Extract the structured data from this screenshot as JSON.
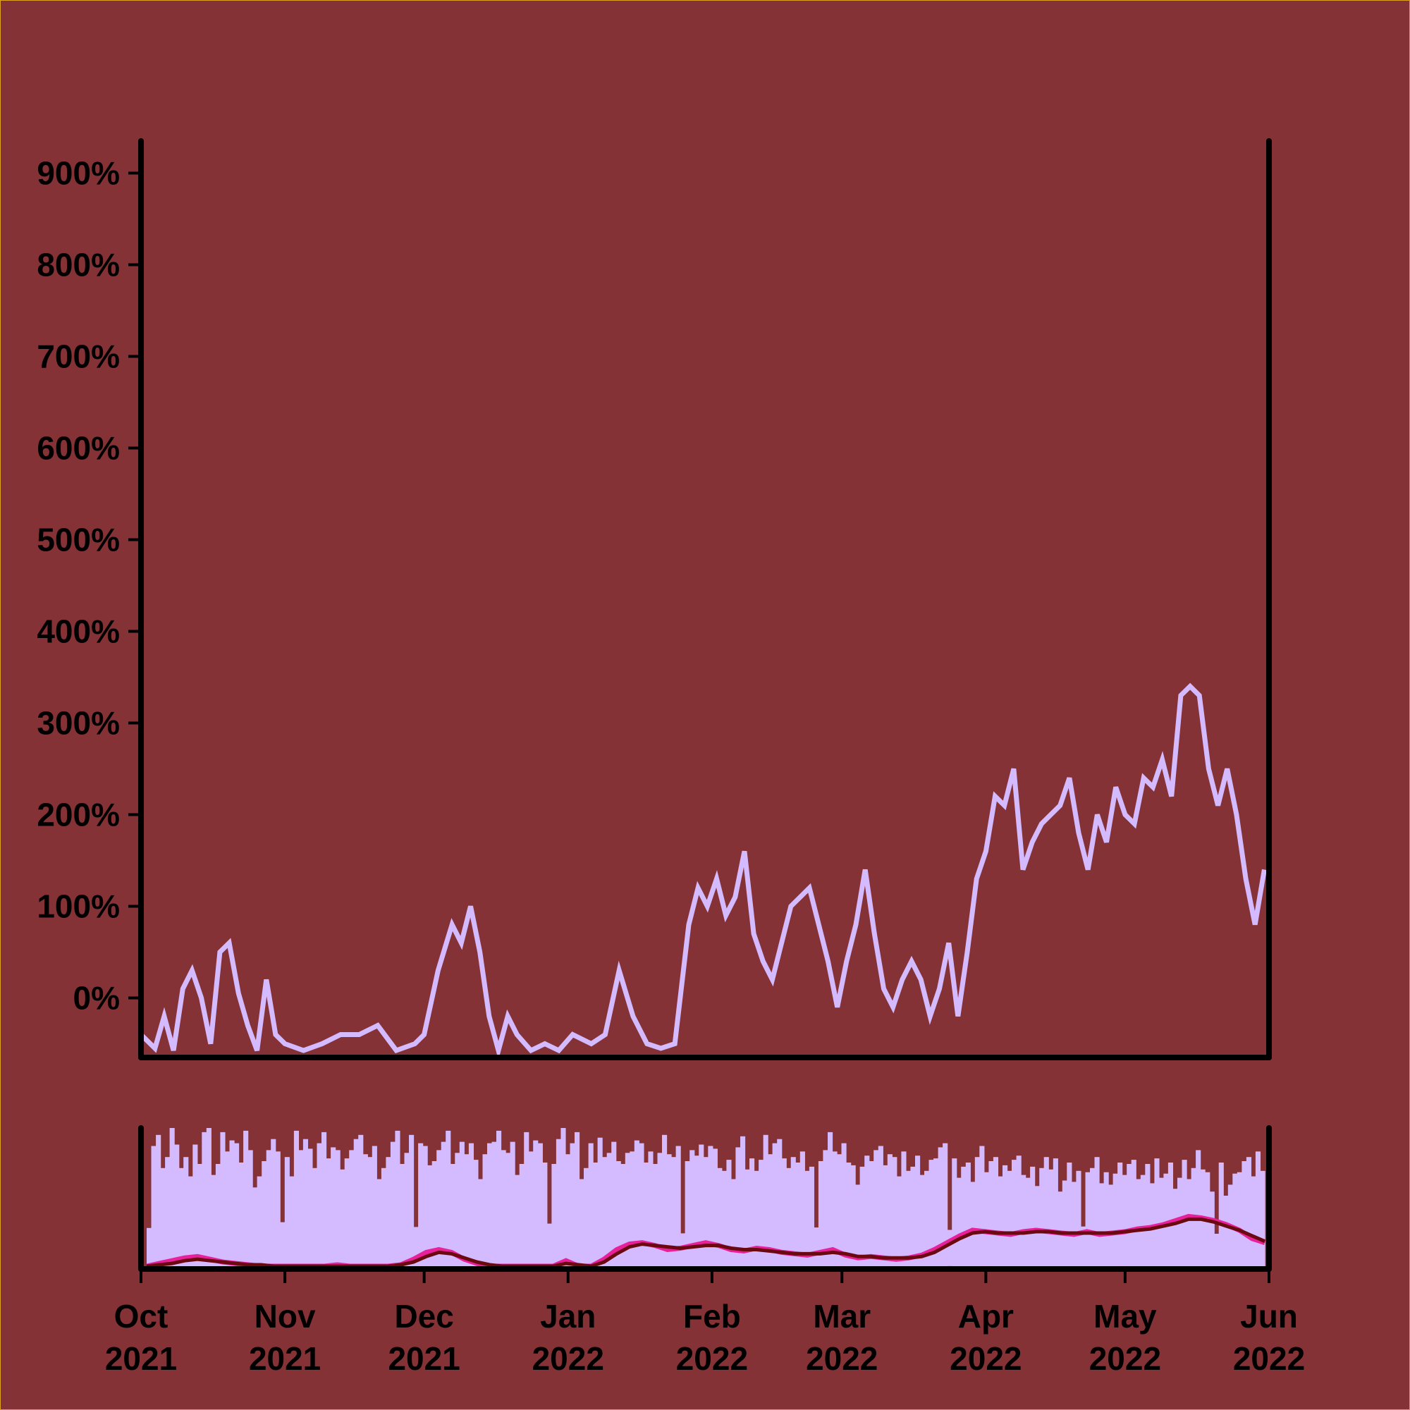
{
  "colors": {
    "background": "#843235",
    "border": "#e0a020",
    "axis": "#000000",
    "price_line": "#d4baff",
    "volume_bars": "#d4baff",
    "fast_ma": "#e8209a",
    "slow_ma": "#6a0a10"
  },
  "chart_data": [
    {
      "type": "line",
      "title": "",
      "xlabel": "",
      "ylabel": "",
      "x_range": [
        "2021-10-01",
        "2022-06-01"
      ],
      "ylim": [
        -65,
        935
      ],
      "grid": false,
      "y_ticks": [
        0,
        100,
        200,
        300,
        400,
        500,
        600,
        700,
        800,
        900
      ],
      "y_tick_labels": [
        "0%",
        "100%",
        "200%",
        "300%",
        "400%",
        "500%",
        "600%",
        "700%",
        "800%",
        "900%"
      ],
      "series": [
        {
          "x": [
            "2021-10-01",
            "2021-10-04",
            "2021-10-06",
            "2021-10-08",
            "2021-10-10",
            "2021-10-12",
            "2021-10-14",
            "2021-10-16",
            "2021-10-18",
            "2021-10-20",
            "2021-10-22",
            "2021-10-24",
            "2021-10-26",
            "2021-10-28",
            "2021-10-30",
            "2021-11-01",
            "2021-11-05",
            "2021-11-09",
            "2021-11-13",
            "2021-11-17",
            "2021-11-21",
            "2021-11-25",
            "2021-11-29",
            "2021-12-01",
            "2021-12-04",
            "2021-12-07",
            "2021-12-09",
            "2021-12-11",
            "2021-12-13",
            "2021-12-15",
            "2021-12-17",
            "2021-12-19",
            "2021-12-21",
            "2021-12-24",
            "2021-12-27",
            "2021-12-30",
            "2022-01-02",
            "2022-01-06",
            "2022-01-09",
            "2022-01-12",
            "2022-01-15",
            "2022-01-18",
            "2022-01-21",
            "2022-01-24",
            "2022-01-27",
            "2022-01-29",
            "2022-01-31",
            "2022-02-02",
            "2022-02-04",
            "2022-02-06",
            "2022-02-08",
            "2022-02-10",
            "2022-02-12",
            "2022-02-14",
            "2022-02-16",
            "2022-02-18",
            "2022-02-20",
            "2022-02-22",
            "2022-02-24",
            "2022-02-26",
            "2022-02-28",
            "2022-03-02",
            "2022-03-04",
            "2022-03-06",
            "2022-03-08",
            "2022-03-10",
            "2022-03-12",
            "2022-03-14",
            "2022-03-16",
            "2022-03-18",
            "2022-03-20",
            "2022-03-22",
            "2022-03-24",
            "2022-03-26",
            "2022-03-28",
            "2022-03-30",
            "2022-04-01",
            "2022-04-03",
            "2022-04-05",
            "2022-04-07",
            "2022-04-09",
            "2022-04-11",
            "2022-04-13",
            "2022-04-15",
            "2022-04-17",
            "2022-04-19",
            "2022-04-21",
            "2022-04-23",
            "2022-04-25",
            "2022-04-27",
            "2022-04-29",
            "2022-05-01",
            "2022-05-03",
            "2022-05-05",
            "2022-05-07",
            "2022-05-09",
            "2022-05-11",
            "2022-05-13",
            "2022-05-15",
            "2022-05-17",
            "2022-05-19",
            "2022-05-21",
            "2022-05-23",
            "2022-05-25",
            "2022-05-27",
            "2022-05-29",
            "2022-05-31"
          ],
          "y": [
            -40,
            -55,
            -20,
            -60,
            10,
            30,
            0,
            -50,
            50,
            60,
            5,
            -30,
            -60,
            20,
            -40,
            -50,
            -60,
            -50,
            -40,
            -40,
            -30,
            -60,
            -50,
            -40,
            30,
            80,
            60,
            100,
            50,
            -20,
            -60,
            -20,
            -40,
            -60,
            -50,
            -60,
            -40,
            -50,
            -40,
            30,
            -20,
            -50,
            -55,
            -50,
            80,
            120,
            100,
            130,
            90,
            110,
            160,
            70,
            40,
            20,
            60,
            100,
            110,
            120,
            80,
            40,
            -10,
            40,
            80,
            140,
            70,
            10,
            -10,
            20,
            40,
            20,
            -20,
            10,
            60,
            -20,
            50,
            130,
            160,
            220,
            210,
            250,
            140,
            170,
            190,
            200,
            210,
            240,
            180,
            140,
            200,
            170,
            230,
            200,
            190,
            240,
            230,
            260,
            220,
            330,
            340,
            330,
            250,
            210,
            250,
            200,
            130,
            80,
            140
          ]
        }
      ]
    },
    {
      "type": "bar",
      "title": "",
      "xlabel": "",
      "ylabel": "",
      "grid": false,
      "x_range": [
        "2021-10-01",
        "2022-06-01"
      ],
      "ylim": [
        0,
        1
      ],
      "volume_levels": [
        0.9,
        0.8,
        0.95,
        0.7,
        0.85,
        1.0,
        0.75,
        0.9,
        0.8,
        0.95,
        0.6,
        0.85,
        0.9,
        0.7,
        0.95,
        0.8,
        0.9,
        0.85,
        0.75,
        0.95,
        0.9,
        0.8,
        0.7,
        0.95,
        0.85,
        0.9,
        0.8,
        0.75,
        0.95,
        0.85,
        0.9,
        0.7,
        0.8,
        0.95,
        0.85,
        0.75,
        0.9,
        0.8,
        0.85,
        0.95,
        0.9,
        0.7,
        0.8,
        0.9,
        0.85,
        0.75,
        0.9,
        0.8,
        0.85,
        0.9,
        0.8,
        0.75,
        0.85,
        0.9,
        0.8,
        0.7,
        0.85,
        0.75,
        0.8,
        0.9,
        0.85,
        0.7,
        0.8,
        0.75,
        0.85,
        0.9,
        0.8,
        0.7,
        0.75,
        0.85,
        0.8,
        0.7,
        0.8,
        0.75,
        0.7,
        0.85,
        0.8,
        0.75,
        0.7,
        0.8,
        0.75,
        0.7,
        0.8,
        0.75,
        0.65,
        0.7,
        0.75,
        0.65,
        0.7,
        0.75,
        0.7,
        0.65,
        0.7,
        0.75,
        0.7,
        0.65,
        0.75,
        0.7,
        0.65,
        0.7,
        0.75,
        0.65,
        0.7,
        0.6,
        0.75,
        0.7,
        0.8
      ],
      "legend": "none",
      "series": [
        {
          "name": "",
          "role": "volume"
        },
        {
          "name": "",
          "role": "fast_ma",
          "values": [
            0.0,
            0.02,
            0.04,
            0.06,
            0.07,
            0.05,
            0.03,
            0.02,
            0.01,
            0.0,
            0.0,
            0.0,
            0.0,
            0.0,
            0.0,
            0.01,
            0.0,
            0.0,
            0.0,
            0.0,
            0.01,
            0.05,
            0.1,
            0.12,
            0.1,
            0.05,
            0.02,
            0.0,
            0.0,
            0.0,
            0.0,
            0.0,
            0.0,
            0.04,
            0.0,
            0.0,
            0.05,
            0.12,
            0.16,
            0.17,
            0.15,
            0.12,
            0.13,
            0.15,
            0.17,
            0.15,
            0.12,
            0.11,
            0.13,
            0.12,
            0.1,
            0.09,
            0.08,
            0.1,
            0.12,
            0.08,
            0.06,
            0.07,
            0.06,
            0.05,
            0.06,
            0.08,
            0.12,
            0.17,
            0.22,
            0.26,
            0.25,
            0.24,
            0.23,
            0.25,
            0.26,
            0.25,
            0.24,
            0.23,
            0.25,
            0.23,
            0.24,
            0.25,
            0.27,
            0.28,
            0.3,
            0.33,
            0.36,
            0.35,
            0.33,
            0.3,
            0.26,
            0.2,
            0.17
          ]
        },
        {
          "name": "",
          "role": "slow_ma",
          "values": [
            0.0,
            0.01,
            0.02,
            0.04,
            0.05,
            0.04,
            0.03,
            0.02,
            0.01,
            0.01,
            0.0,
            0.0,
            0.0,
            0.0,
            0.0,
            0.0,
            0.0,
            0.0,
            0.0,
            0.0,
            0.01,
            0.03,
            0.07,
            0.1,
            0.09,
            0.06,
            0.03,
            0.01,
            0.0,
            0.0,
            0.0,
            0.0,
            0.0,
            0.02,
            0.01,
            0.0,
            0.03,
            0.09,
            0.14,
            0.16,
            0.15,
            0.14,
            0.13,
            0.14,
            0.15,
            0.15,
            0.13,
            0.12,
            0.12,
            0.11,
            0.1,
            0.09,
            0.09,
            0.09,
            0.1,
            0.09,
            0.07,
            0.07,
            0.06,
            0.06,
            0.06,
            0.07,
            0.1,
            0.15,
            0.2,
            0.24,
            0.25,
            0.24,
            0.24,
            0.24,
            0.25,
            0.25,
            0.24,
            0.24,
            0.24,
            0.24,
            0.24,
            0.25,
            0.26,
            0.27,
            0.29,
            0.31,
            0.34,
            0.34,
            0.32,
            0.29,
            0.26,
            0.22,
            0.18
          ]
        }
      ],
      "x_tick_labels": [
        {
          "date": "2021-10-01",
          "month": "Oct",
          "year": "2021"
        },
        {
          "date": "2021-11-01",
          "month": "Nov",
          "year": "2021"
        },
        {
          "date": "2021-12-01",
          "month": "Dec",
          "year": "2021"
        },
        {
          "date": "2022-01-01",
          "month": "Jan",
          "year": "2022"
        },
        {
          "date": "2022-02-01",
          "month": "Feb",
          "year": "2022"
        },
        {
          "date": "2022-03-01",
          "month": "Mar",
          "year": "2022"
        },
        {
          "date": "2022-04-01",
          "month": "Apr",
          "year": "2022"
        },
        {
          "date": "2022-05-01",
          "month": "May",
          "year": "2022"
        },
        {
          "date": "2022-06-01",
          "month": "Jun",
          "year": "2022"
        }
      ]
    }
  ]
}
